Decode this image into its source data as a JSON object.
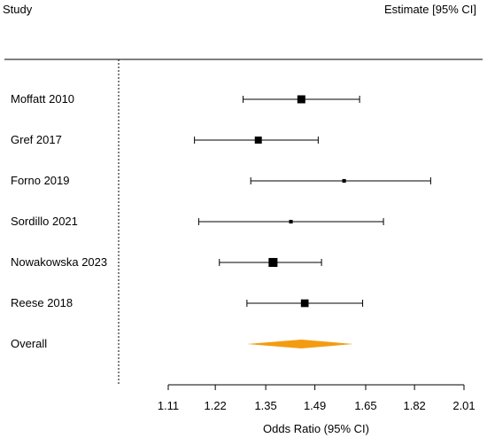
{
  "chart_data": {
    "type": "forest",
    "header": {
      "left": "Study",
      "right": "Estimate [95% CI]"
    },
    "studies": [
      {
        "label": "Moffatt 2010",
        "estimate": 1.45,
        "ci_low": 1.29,
        "ci_high": 1.63,
        "weight": 1.0
      },
      {
        "label": "Gref 2017",
        "estimate": 1.33,
        "ci_low": 1.17,
        "ci_high": 1.5,
        "weight": 0.85
      },
      {
        "label": "Forno 2019",
        "estimate": 1.58,
        "ci_low": 1.31,
        "ci_high": 1.88,
        "weight": 0.3
      },
      {
        "label": "Sordillo 2021",
        "estimate": 1.42,
        "ci_low": 1.18,
        "ci_high": 1.71,
        "weight": 0.3
      },
      {
        "label": "Nowakowska 2023",
        "estimate": 1.37,
        "ci_low": 1.23,
        "ci_high": 1.51,
        "weight": 1.15
      },
      {
        "label": "Reese 2018",
        "estimate": 1.46,
        "ci_low": 1.3,
        "ci_high": 1.64,
        "weight": 0.95
      }
    ],
    "overall": {
      "label": "Overall",
      "estimate": 1.45,
      "ci_low": 1.3,
      "ci_high": 1.61,
      "color": "#f39c12"
    },
    "reference_line": 1,
    "x_scale": "log",
    "x_ticks": [
      1.11,
      1.22,
      1.35,
      1.49,
      1.65,
      1.82,
      2.01
    ],
    "x_tick_labels": [
      "1.11",
      "1.22",
      "1.35",
      "1.49",
      "1.65",
      "1.82",
      "2.01"
    ],
    "xlim": [
      1.11,
      2.01
    ],
    "xlabel": "Odds Ratio (95% CI)"
  }
}
